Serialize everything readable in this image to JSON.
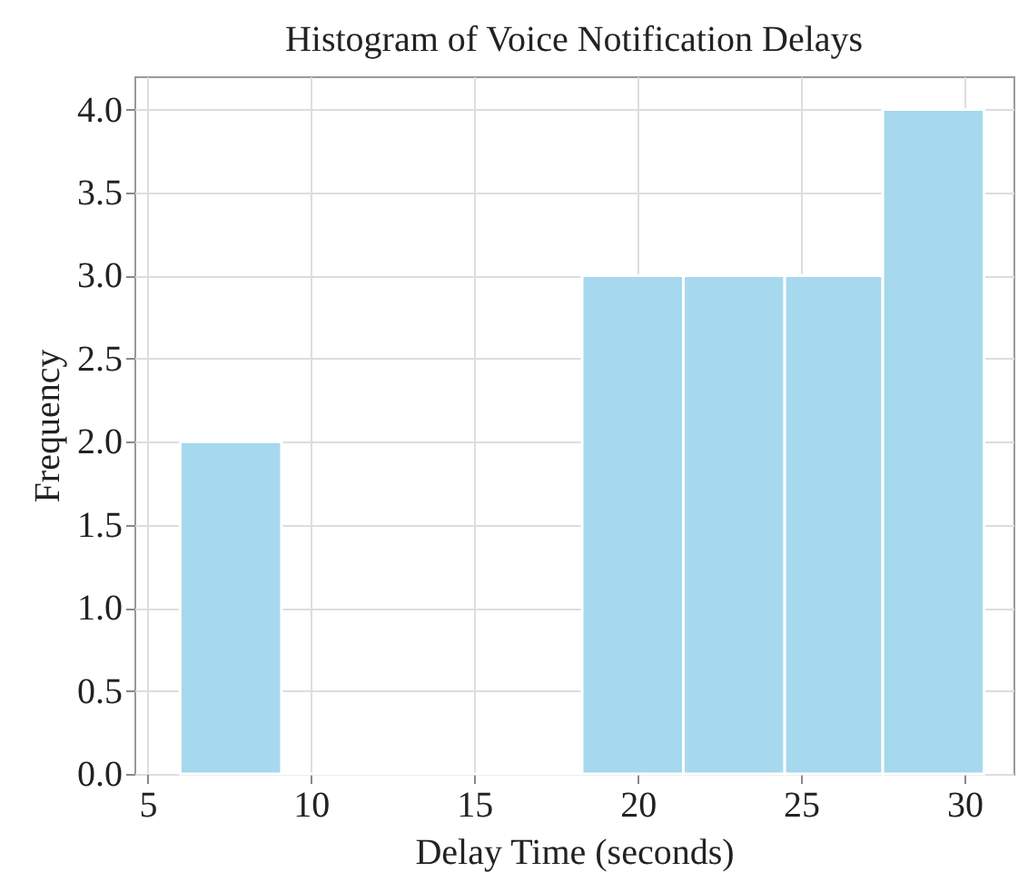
{
  "chart_data": {
    "type": "histogram",
    "title": "Histogram of Voice Notification Delays",
    "xlabel": "Delay Time (seconds)",
    "ylabel": "Frequency",
    "bins": [
      6,
      9.1,
      18.3,
      21.4,
      24.5,
      27.5,
      30.6
    ],
    "values": [
      2,
      0,
      3,
      3,
      3,
      4
    ],
    "color": "#a6d8ee",
    "xlim": [
      4.6,
      31.5
    ],
    "xticks": [
      5,
      10,
      15,
      20,
      25,
      30
    ],
    "ylim": [
      0,
      4.2
    ],
    "yticks": [
      {
        "value": 0,
        "label": "0.0"
      },
      {
        "value": 0.5,
        "label": "0.5"
      },
      {
        "value": 1,
        "label": "1.0"
      },
      {
        "value": 1.5,
        "label": "1.5"
      },
      {
        "value": 2,
        "label": "2.0"
      },
      {
        "value": 2.5,
        "label": "2.5"
      },
      {
        "value": 3,
        "label": "3.0"
      },
      {
        "value": 3.5,
        "label": "3.5"
      },
      {
        "value": 4,
        "label": "4.0"
      }
    ],
    "grid": true
  }
}
